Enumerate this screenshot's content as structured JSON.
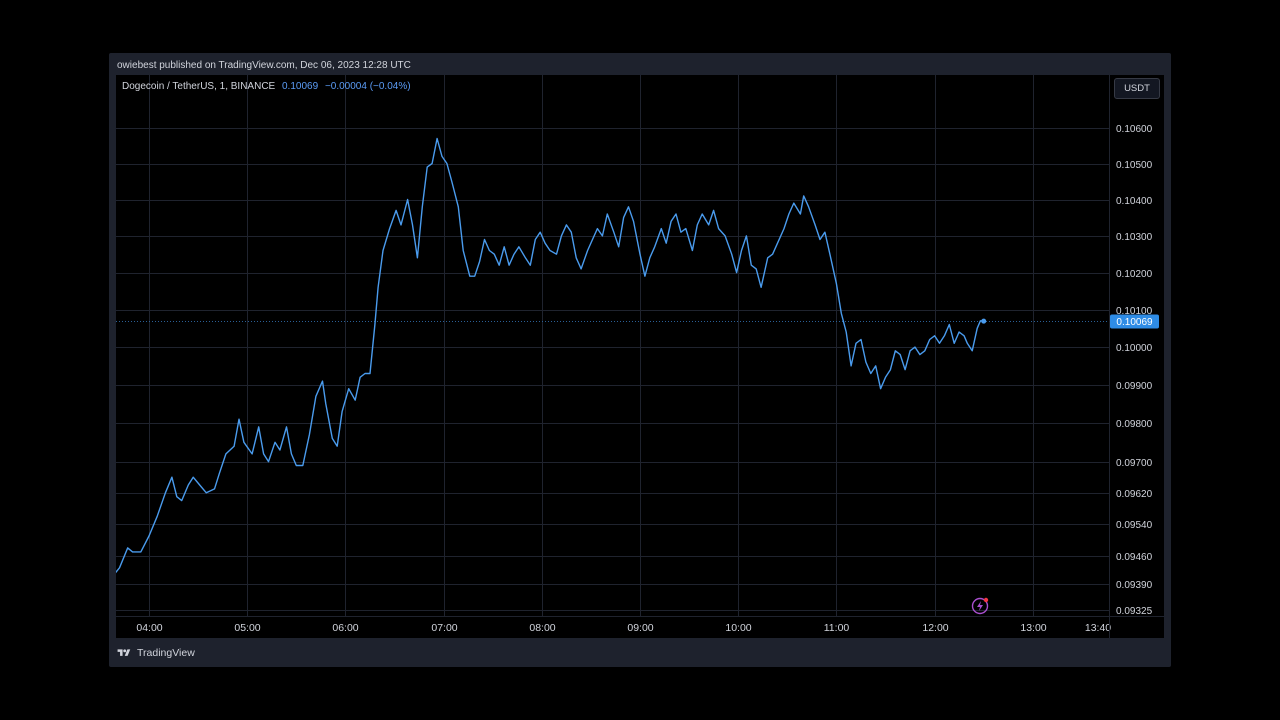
{
  "publisher_text": "owiebest published on TradingView.com, Dec 06, 2023 12:28 UTC",
  "symbol": {
    "name": "Dogecoin / TetherUS, 1, BINANCE",
    "price": "0.10069",
    "change": "−0.00004 (−0.04%)"
  },
  "currency_button": "USDT",
  "footer_brand": "TradingView",
  "colors": {
    "line": "#4a9bed",
    "grid": "#1f232e",
    "axis_text": "#d1d4dc",
    "last_price_badge": "#2e8ce6",
    "quick_icon": "#a94fcf",
    "quick_icon_dot": "#f23645"
  },
  "chart_data": {
    "type": "line",
    "title": "Dogecoin / TetherUS, 1, BINANCE",
    "x_ticks": [
      "04:00",
      "05:00",
      "06:00",
      "07:00",
      "08:00",
      "09:00",
      "10:00",
      "11:00",
      "12:00",
      "13:00",
      "13:40"
    ],
    "y_ticks": [
      "0.10600",
      "0.10500",
      "0.10400",
      "0.10300",
      "0.10200",
      "0.10100",
      "0.10000",
      "0.09900",
      "0.09800",
      "0.09700",
      "0.09620",
      "0.09540",
      "0.09460",
      "0.09390",
      "0.09325"
    ],
    "ylim": [
      0.0931,
      0.1075
    ],
    "last_price": "0.10069",
    "grid": true,
    "series": [
      {
        "values": [
          [
            "03:38",
            0.0941
          ],
          [
            "03:42",
            0.0943
          ],
          [
            "03:47",
            0.0948
          ],
          [
            "03:50",
            0.0947
          ],
          [
            "03:55",
            0.0947
          ],
          [
            "04:00",
            0.0951
          ],
          [
            "04:05",
            0.0956
          ],
          [
            "04:10",
            0.0962
          ],
          [
            "04:14",
            0.0966
          ],
          [
            "04:17",
            0.0961
          ],
          [
            "04:20",
            0.096
          ],
          [
            "04:24",
            0.0964
          ],
          [
            "04:27",
            0.0966
          ],
          [
            "04:31",
            0.0964
          ],
          [
            "04:35",
            0.0962
          ],
          [
            "04:40",
            0.0963
          ],
          [
            "04:43",
            0.0967
          ],
          [
            "04:47",
            0.0972
          ],
          [
            "04:52",
            0.0974
          ],
          [
            "04:55",
            0.0981
          ],
          [
            "04:58",
            0.0975
          ],
          [
            "05:03",
            0.0972
          ],
          [
            "05:07",
            0.0979
          ],
          [
            "05:10",
            0.0972
          ],
          [
            "05:13",
            0.097
          ],
          [
            "05:17",
            0.0975
          ],
          [
            "05:20",
            0.0973
          ],
          [
            "05:24",
            0.0979
          ],
          [
            "05:27",
            0.0972
          ],
          [
            "05:30",
            0.0969
          ],
          [
            "05:34",
            0.0969
          ],
          [
            "05:38",
            0.0977
          ],
          [
            "05:42",
            0.0987
          ],
          [
            "05:46",
            0.0991
          ],
          [
            "05:48",
            0.0985
          ],
          [
            "05:52",
            0.0976
          ],
          [
            "05:55",
            0.0974
          ],
          [
            "05:58",
            0.0983
          ],
          [
            "06:02",
            0.0989
          ],
          [
            "06:06",
            0.0986
          ],
          [
            "06:09",
            0.0992
          ],
          [
            "06:12",
            0.0993
          ],
          [
            "06:15",
            0.0993
          ],
          [
            "06:18",
            0.1006
          ],
          [
            "06:20",
            0.1016
          ],
          [
            "06:23",
            0.1026
          ],
          [
            "06:27",
            0.1032
          ],
          [
            "06:31",
            0.1037
          ],
          [
            "06:34",
            0.1033
          ],
          [
            "06:38",
            0.104
          ],
          [
            "06:41",
            0.1033
          ],
          [
            "06:44",
            0.1024
          ],
          [
            "06:47",
            0.1038
          ],
          [
            "06:50",
            0.1049
          ],
          [
            "06:53",
            0.105
          ],
          [
            "06:56",
            0.1057
          ],
          [
            "06:59",
            0.1052
          ],
          [
            "07:02",
            0.105
          ],
          [
            "07:05",
            0.1045
          ],
          [
            "07:09",
            0.1038
          ],
          [
            "07:12",
            0.1026
          ],
          [
            "07:16",
            0.1019
          ],
          [
            "07:19",
            0.1019
          ],
          [
            "07:22",
            0.1023
          ],
          [
            "07:25",
            0.1029
          ],
          [
            "07:28",
            0.1026
          ],
          [
            "07:31",
            0.1025
          ],
          [
            "07:34",
            0.1022
          ],
          [
            "07:37",
            0.1027
          ],
          [
            "07:40",
            0.1022
          ],
          [
            "07:43",
            0.1025
          ],
          [
            "07:46",
            0.1027
          ],
          [
            "07:50",
            0.1024
          ],
          [
            "07:53",
            0.1022
          ],
          [
            "07:56",
            0.1029
          ],
          [
            "07:59",
            0.1031
          ],
          [
            "08:02",
            0.1028
          ],
          [
            "08:05",
            0.1026
          ],
          [
            "08:09",
            0.1025
          ],
          [
            "08:12",
            0.103
          ],
          [
            "08:15",
            0.1033
          ],
          [
            "08:18",
            0.1031
          ],
          [
            "08:21",
            0.1024
          ],
          [
            "08:24",
            0.1021
          ],
          [
            "08:28",
            0.1026
          ],
          [
            "08:31",
            0.1029
          ],
          [
            "08:34",
            0.1032
          ],
          [
            "08:37",
            0.103
          ],
          [
            "08:40",
            0.1036
          ],
          [
            "08:44",
            0.1031
          ],
          [
            "08:47",
            0.1027
          ],
          [
            "08:50",
            0.1035
          ],
          [
            "08:53",
            0.1038
          ],
          [
            "08:56",
            0.1034
          ],
          [
            "09:00",
            0.1025
          ],
          [
            "09:03",
            0.1019
          ],
          [
            "09:06",
            0.1024
          ],
          [
            "09:09",
            0.1027
          ],
          [
            "09:13",
            0.1032
          ],
          [
            "09:16",
            0.1028
          ],
          [
            "09:19",
            0.1034
          ],
          [
            "09:22",
            0.1036
          ],
          [
            "09:25",
            0.1031
          ],
          [
            "09:28",
            0.1032
          ],
          [
            "09:32",
            0.1026
          ],
          [
            "09:35",
            0.1033
          ],
          [
            "09:38",
            0.1036
          ],
          [
            "09:42",
            0.1033
          ],
          [
            "09:45",
            0.1037
          ],
          [
            "09:48",
            0.1032
          ],
          [
            "09:52",
            0.103
          ],
          [
            "09:56",
            0.1025
          ],
          [
            "09:59",
            0.102
          ],
          [
            "10:02",
            0.1026
          ],
          [
            "10:05",
            0.103
          ],
          [
            "10:08",
            0.1022
          ],
          [
            "10:11",
            0.1021
          ],
          [
            "10:14",
            0.1016
          ],
          [
            "10:18",
            0.1024
          ],
          [
            "10:21",
            0.1025
          ],
          [
            "10:24",
            0.1028
          ],
          [
            "10:28",
            0.1032
          ],
          [
            "10:31",
            0.1036
          ],
          [
            "10:34",
            0.1039
          ],
          [
            "10:38",
            0.1036
          ],
          [
            "10:40",
            0.1041
          ],
          [
            "10:43",
            0.1038
          ],
          [
            "10:47",
            0.1033
          ],
          [
            "10:50",
            0.1029
          ],
          [
            "10:53",
            0.1031
          ],
          [
            "10:56",
            0.1025
          ],
          [
            "11:00",
            0.1017
          ],
          [
            "11:03",
            0.1009
          ],
          [
            "11:06",
            0.1004
          ],
          [
            "11:09",
            0.0995
          ],
          [
            "11:12",
            0.1001
          ],
          [
            "11:15",
            0.1002
          ],
          [
            "11:18",
            0.0996
          ],
          [
            "11:21",
            0.0993
          ],
          [
            "11:24",
            0.0995
          ],
          [
            "11:27",
            0.0989
          ],
          [
            "11:30",
            0.0992
          ],
          [
            "11:33",
            0.0994
          ],
          [
            "11:36",
            0.0999
          ],
          [
            "11:39",
            0.0998
          ],
          [
            "11:42",
            0.0994
          ],
          [
            "11:45",
            0.0999
          ],
          [
            "11:48",
            0.1
          ],
          [
            "11:51",
            0.0998
          ],
          [
            "11:54",
            0.0999
          ],
          [
            "11:57",
            0.1002
          ],
          [
            "12:00",
            0.1003
          ],
          [
            "12:03",
            0.1001
          ],
          [
            "12:06",
            0.1003
          ],
          [
            "12:09",
            0.1006
          ],
          [
            "12:12",
            0.1001
          ],
          [
            "12:15",
            0.1004
          ],
          [
            "12:18",
            0.1003
          ],
          [
            "12:20",
            0.1001
          ],
          [
            "12:23",
            0.0999
          ],
          [
            "12:26",
            0.1005
          ],
          [
            "12:28",
            0.1007
          ],
          [
            "12:30",
            0.10069
          ]
        ]
      }
    ]
  }
}
